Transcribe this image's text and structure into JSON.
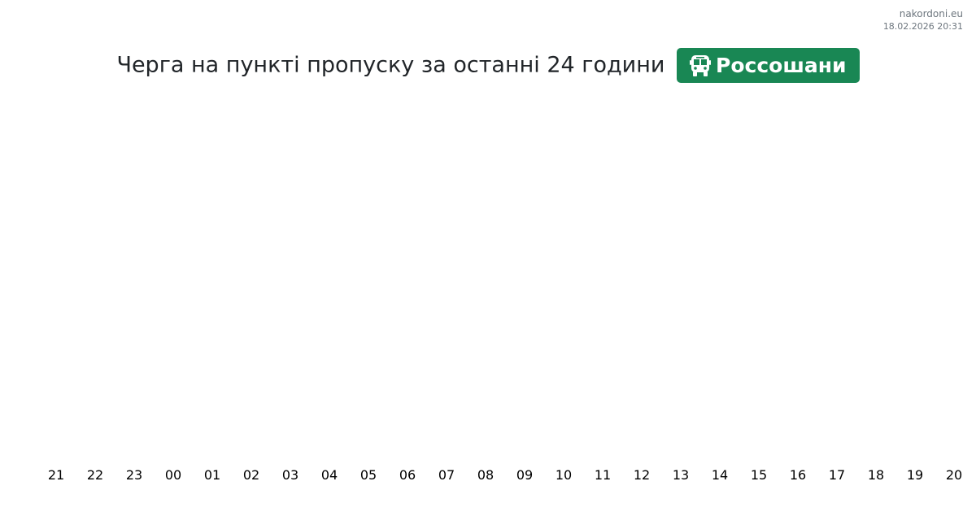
{
  "meta": {
    "site": "nakordoni.eu",
    "timestamp": "18.02.2026 20:31"
  },
  "header": {
    "title": "Черга на пункті пропуску за останні 24 години",
    "checkpoint": "Россошани",
    "checkpoint_icon": "bus-icon",
    "badge_color": "#198754"
  },
  "chart_data": {
    "type": "bar",
    "title": "Черга на пункті пропуску за останні 24 години",
    "categories": [
      "21",
      "22",
      "23",
      "00",
      "01",
      "02",
      "03",
      "04",
      "05",
      "06",
      "07",
      "08",
      "09",
      "10",
      "11",
      "12",
      "13",
      "14",
      "15",
      "16",
      "17",
      "18",
      "19",
      "20"
    ],
    "series": [],
    "grid": false,
    "legend": "none"
  }
}
